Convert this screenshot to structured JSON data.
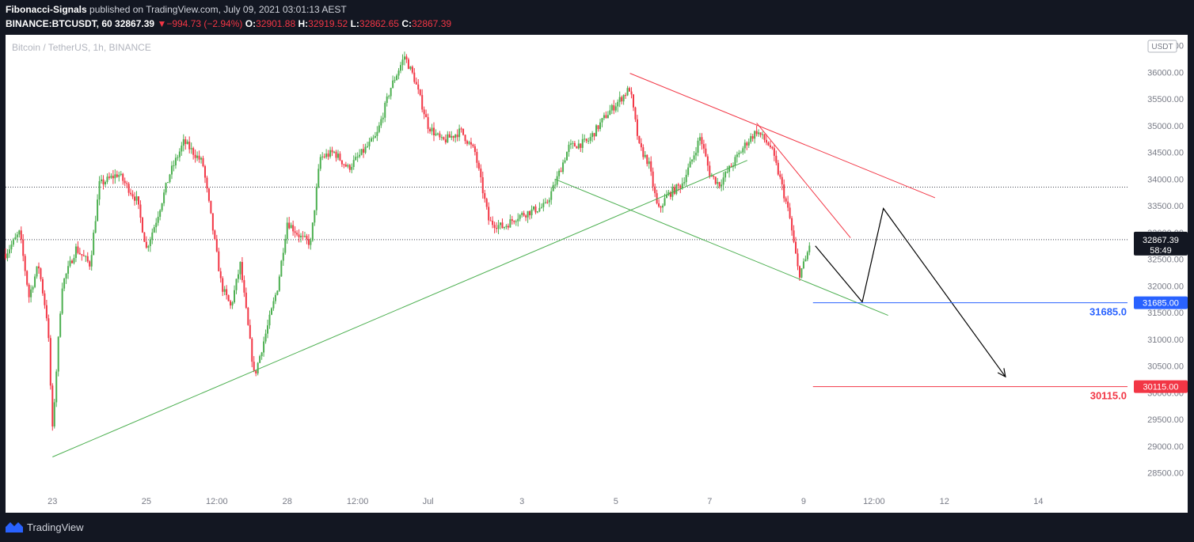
{
  "header": {
    "author": "Fibonacci-Signals",
    "published_text": " published on TradingView.com, July 09, 2021 03:01:13 AEST",
    "symbol": "BINANCE:BTCUSDT, 60",
    "last": "32867.39",
    "arrow": "▼",
    "change": "−994.73 (−2.94%)",
    "o_label": "O:",
    "o_value": "32901.88",
    "h_label": "H:",
    "h_value": "32919.52",
    "l_label": "L:",
    "l_value": "32862.65",
    "c_label": "C:",
    "c_value": "32867.39"
  },
  "footer": {
    "brand": "TradingView"
  },
  "colors": {
    "background": "#131722",
    "chart_background": "#ffffff",
    "up": "#26a69a",
    "up_candle": "#4caf50",
    "down": "#f23645",
    "blue": "#2962ff",
    "trend_green": "#4caf50",
    "trend_red": "#f23645",
    "arrow": "#000000"
  },
  "chart_data": {
    "type": "candlestick",
    "title": "Bitcoin / TetherUS, 1h, BINANCE",
    "currency_badge": "USDT",
    "ylim": [
      28200,
      36700
    ],
    "y_ticks": [
      28500,
      29000,
      29500,
      30000,
      30500,
      31000,
      31500,
      32000,
      32500,
      33000,
      33500,
      34000,
      34500,
      35000,
      35500,
      36000,
      36500
    ],
    "y_tick_labels": [
      "28500.00",
      "29000.00",
      "29500.00",
      "30000.00",
      "30500.00",
      "31000.00",
      "31500.00",
      "32000.00",
      "32500.00",
      "33000.00",
      "33500.00",
      "34000.00",
      "34500.00",
      "35000.00",
      "35500.00",
      "36000.00",
      "36500.00"
    ],
    "x_range_days": [
      22.0,
      45.9
    ],
    "x_ticks": [
      {
        "label": "23",
        "day": 23
      },
      {
        "label": "25",
        "day": 25
      },
      {
        "label": "12:00",
        "day": 26.5
      },
      {
        "label": "28",
        "day": 28
      },
      {
        "label": "12:00",
        "day": 29.5
      },
      {
        "label": "Jul",
        "day": 31
      },
      {
        "label": "3",
        "day": 33
      },
      {
        "label": "5",
        "day": 35
      },
      {
        "label": "7",
        "day": 37
      },
      {
        "label": "9",
        "day": 39
      },
      {
        "label": "12:00",
        "day": 40.5
      },
      {
        "label": "12",
        "day": 42
      },
      {
        "label": "14",
        "day": 44
      }
    ],
    "price_path": [
      {
        "day": 22.0,
        "price": 32600
      },
      {
        "day": 22.3,
        "price": 33000
      },
      {
        "day": 22.5,
        "price": 31800
      },
      {
        "day": 22.7,
        "price": 32400
      },
      {
        "day": 22.9,
        "price": 31300
      },
      {
        "day": 23.0,
        "price": 29300
      },
      {
        "day": 23.2,
        "price": 32000
      },
      {
        "day": 23.5,
        "price": 32700
      },
      {
        "day": 23.8,
        "price": 32400
      },
      {
        "day": 24.0,
        "price": 33900
      },
      {
        "day": 24.4,
        "price": 34100
      },
      {
        "day": 24.8,
        "price": 33600
      },
      {
        "day": 25.0,
        "price": 32700
      },
      {
        "day": 25.2,
        "price": 33200
      },
      {
        "day": 25.5,
        "price": 34100
      },
      {
        "day": 25.8,
        "price": 34700
      },
      {
        "day": 26.2,
        "price": 34300
      },
      {
        "day": 26.6,
        "price": 32000
      },
      {
        "day": 26.8,
        "price": 31600
      },
      {
        "day": 27.0,
        "price": 32400
      },
      {
        "day": 27.3,
        "price": 30300
      },
      {
        "day": 27.6,
        "price": 31300
      },
      {
        "day": 27.8,
        "price": 32000
      },
      {
        "day": 28.0,
        "price": 33200
      },
      {
        "day": 28.3,
        "price": 32900
      },
      {
        "day": 28.5,
        "price": 32800
      },
      {
        "day": 28.7,
        "price": 34400
      },
      {
        "day": 29.0,
        "price": 34500
      },
      {
        "day": 29.3,
        "price": 34200
      },
      {
        "day": 29.6,
        "price": 34500
      },
      {
        "day": 29.9,
        "price": 34800
      },
      {
        "day": 30.2,
        "price": 35700
      },
      {
        "day": 30.5,
        "price": 36300
      },
      {
        "day": 30.7,
        "price": 35900
      },
      {
        "day": 31.0,
        "price": 35000
      },
      {
        "day": 31.3,
        "price": 34700
      },
      {
        "day": 31.7,
        "price": 34900
      },
      {
        "day": 32.0,
        "price": 34500
      },
      {
        "day": 32.3,
        "price": 33200
      },
      {
        "day": 32.6,
        "price": 33100
      },
      {
        "day": 32.9,
        "price": 33300
      },
      {
        "day": 33.2,
        "price": 33400
      },
      {
        "day": 33.5,
        "price": 33500
      },
      {
        "day": 33.7,
        "price": 33900
      },
      {
        "day": 34.0,
        "price": 34600
      },
      {
        "day": 34.4,
        "price": 34700
      },
      {
        "day": 34.8,
        "price": 35200
      },
      {
        "day": 35.1,
        "price": 35500
      },
      {
        "day": 35.3,
        "price": 35700
      },
      {
        "day": 35.5,
        "price": 34600
      },
      {
        "day": 35.7,
        "price": 34300
      },
      {
        "day": 35.9,
        "price": 33400
      },
      {
        "day": 36.1,
        "price": 33700
      },
      {
        "day": 36.4,
        "price": 33900
      },
      {
        "day": 36.6,
        "price": 34300
      },
      {
        "day": 36.8,
        "price": 34800
      },
      {
        "day": 37.0,
        "price": 34100
      },
      {
        "day": 37.2,
        "price": 33900
      },
      {
        "day": 37.5,
        "price": 34300
      },
      {
        "day": 37.8,
        "price": 34700
      },
      {
        "day": 38.0,
        "price": 34900
      },
      {
        "day": 38.3,
        "price": 34600
      },
      {
        "day": 38.5,
        "price": 34000
      },
      {
        "day": 38.7,
        "price": 33300
      },
      {
        "day": 38.9,
        "price": 32200
      },
      {
        "day": 39.05,
        "price": 32500
      },
      {
        "day": 39.15,
        "price": 32867
      }
    ],
    "lines": [
      {
        "name": "support-rising",
        "color": "#4caf50",
        "from": {
          "day": 23.0,
          "price": 28800
        },
        "to": {
          "day": 37.8,
          "price": 34350
        }
      },
      {
        "name": "support-falling",
        "color": "#4caf50",
        "from": {
          "day": 33.7,
          "price": 34000
        },
        "to": {
          "day": 40.8,
          "price": 31450
        }
      },
      {
        "name": "resistance-outer",
        "color": "#f23645",
        "from": {
          "day": 35.3,
          "price": 35980
        },
        "to": {
          "day": 41.8,
          "price": 33650
        }
      },
      {
        "name": "resistance-inner",
        "color": "#f23645",
        "from": {
          "day": 38.0,
          "price": 35050
        },
        "to": {
          "day": 40.0,
          "price": 32900
        }
      }
    ],
    "horizontal_dotted": [
      33850,
      32867.39
    ],
    "projection": [
      {
        "day": 39.25,
        "price": 32750
      },
      {
        "day": 40.25,
        "price": 31700
      },
      {
        "day": 40.7,
        "price": 33450
      },
      {
        "day": 43.3,
        "price": 30300
      }
    ],
    "levels": [
      {
        "label": "31685.0",
        "price": 31685,
        "from_day": 39.2,
        "axis_label": "31685.00",
        "color": "#2962ff"
      },
      {
        "label": "30115.0",
        "price": 30115,
        "from_day": 39.2,
        "axis_label": "30115.00",
        "color": "#f23645"
      }
    ],
    "last_price_label": "32867.39",
    "countdown_label": "58:49"
  }
}
